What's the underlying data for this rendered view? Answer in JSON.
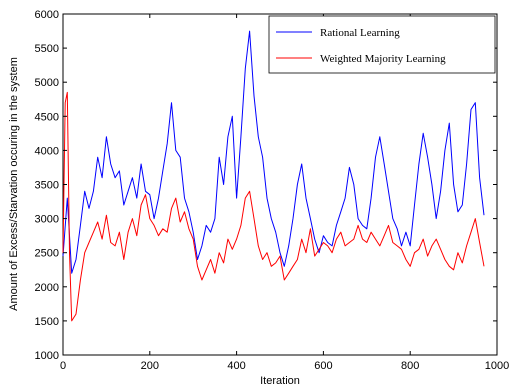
{
  "chart_data": {
    "type": "line",
    "title": "",
    "xlabel": "Iteration",
    "ylabel": "Amount of Excess/Starvation occuring in the system",
    "xlim": [
      0,
      1000
    ],
    "ylim": [
      1000,
      6000
    ],
    "xticks": [
      0,
      200,
      400,
      600,
      800,
      1000
    ],
    "yticks": [
      1000,
      1500,
      2000,
      2500,
      3000,
      3500,
      4000,
      4500,
      5000,
      5500,
      6000
    ],
    "xtick_labels": [
      "0",
      "200",
      "400",
      "600",
      "800",
      "1000"
    ],
    "ytick_labels": [
      "1000",
      "1500",
      "2000",
      "2500",
      "3000",
      "3500",
      "4000",
      "4500",
      "5000",
      "5500",
      "6000"
    ],
    "grid": false,
    "legend_position": "top-right",
    "series": [
      {
        "name": "Rational Learning",
        "color": "#0000ff",
        "x": [
          0,
          10,
          20,
          30,
          40,
          50,
          60,
          70,
          80,
          90,
          100,
          110,
          120,
          130,
          140,
          150,
          160,
          170,
          180,
          190,
          200,
          210,
          220,
          230,
          240,
          250,
          260,
          270,
          280,
          290,
          300,
          310,
          320,
          330,
          340,
          350,
          360,
          370,
          380,
          390,
          400,
          410,
          420,
          430,
          440,
          450,
          460,
          470,
          480,
          490,
          500,
          510,
          520,
          530,
          540,
          550,
          560,
          570,
          580,
          590,
          600,
          610,
          620,
          630,
          640,
          650,
          660,
          670,
          680,
          690,
          700,
          710,
          720,
          730,
          740,
          750,
          760,
          770,
          780,
          790,
          800,
          810,
          820,
          830,
          840,
          850,
          860,
          870,
          880,
          890,
          900,
          910,
          920,
          930,
          940,
          950,
          960,
          970
        ],
        "y": [
          2450,
          3300,
          2200,
          2400,
          2900,
          3400,
          3150,
          3400,
          3900,
          3600,
          4200,
          3800,
          3600,
          3700,
          3200,
          3400,
          3600,
          3300,
          3800,
          3400,
          3350,
          3000,
          3300,
          3700,
          4100,
          4700,
          4000,
          3900,
          3300,
          3100,
          2800,
          2400,
          2600,
          2900,
          2800,
          3000,
          3900,
          3500,
          4200,
          4500,
          3300,
          4200,
          5200,
          5750,
          4800,
          4200,
          3900,
          3300,
          3000,
          2800,
          2500,
          2300,
          2600,
          3000,
          3500,
          3800,
          3300,
          3000,
          2700,
          2500,
          2750,
          2650,
          2600,
          2900,
          3100,
          3300,
          3750,
          3500,
          3000,
          2900,
          2850,
          3300,
          3900,
          4200,
          3800,
          3400,
          3000,
          2850,
          2600,
          2800,
          2600,
          3200,
          3800,
          4250,
          3900,
          3500,
          3000,
          3400,
          4000,
          4400,
          3500,
          3100,
          3200,
          3800,
          4600,
          4700,
          3600,
          3050
        ]
      },
      {
        "name": "Weighted Majority Learning",
        "color": "#ff0000",
        "x": [
          0,
          5,
          10,
          15,
          20,
          30,
          40,
          50,
          60,
          70,
          80,
          90,
          100,
          110,
          120,
          130,
          140,
          150,
          160,
          170,
          180,
          190,
          200,
          210,
          220,
          230,
          240,
          250,
          260,
          270,
          280,
          290,
          300,
          310,
          320,
          330,
          340,
          350,
          360,
          370,
          380,
          390,
          400,
          410,
          420,
          430,
          440,
          450,
          460,
          470,
          480,
          490,
          500,
          510,
          520,
          530,
          540,
          550,
          560,
          570,
          580,
          590,
          600,
          610,
          620,
          630,
          640,
          650,
          660,
          670,
          680,
          690,
          700,
          710,
          720,
          730,
          740,
          750,
          760,
          770,
          780,
          790,
          800,
          810,
          820,
          830,
          840,
          850,
          860,
          870,
          880,
          890,
          900,
          910,
          920,
          930,
          940,
          950,
          960,
          970
        ],
        "y": [
          2500,
          4700,
          4850,
          2500,
          1500,
          1600,
          2100,
          2500,
          2650,
          2800,
          2950,
          2700,
          3050,
          2650,
          2600,
          2800,
          2400,
          2800,
          3000,
          2750,
          3200,
          3350,
          3000,
          2900,
          2750,
          2850,
          2800,
          3150,
          3300,
          2950,
          3100,
          2850,
          2700,
          2300,
          2100,
          2250,
          2400,
          2200,
          2500,
          2350,
          2700,
          2550,
          2700,
          2900,
          3300,
          3400,
          3000,
          2600,
          2400,
          2500,
          2300,
          2350,
          2450,
          2100,
          2200,
          2300,
          2400,
          2700,
          2500,
          2850,
          2450,
          2550,
          2650,
          2600,
          2500,
          2700,
          2800,
          2600,
          2650,
          2700,
          2900,
          2700,
          2650,
          2800,
          2700,
          2600,
          2750,
          2900,
          2650,
          2600,
          2550,
          2400,
          2300,
          2500,
          2550,
          2700,
          2450,
          2600,
          2700,
          2550,
          2400,
          2300,
          2250,
          2500,
          2350,
          2600,
          2800,
          3000,
          2650,
          2300
        ]
      }
    ]
  }
}
